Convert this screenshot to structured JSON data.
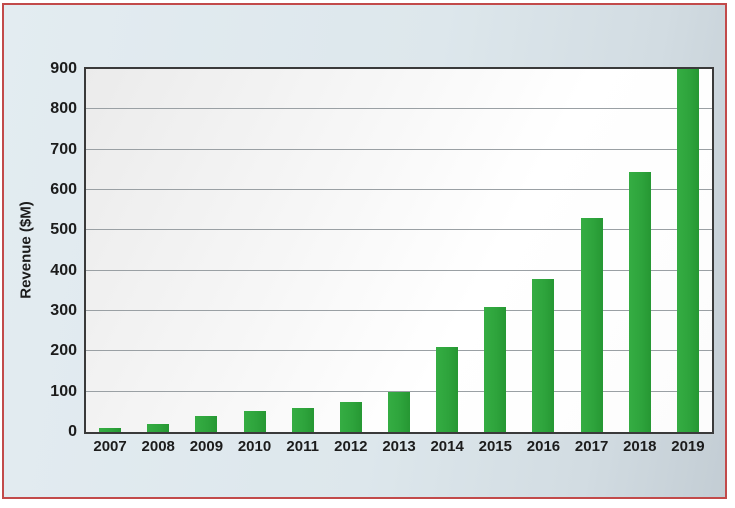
{
  "chart_data": {
    "type": "bar",
    "categories": [
      "2007",
      "2008",
      "2009",
      "2010",
      "2011",
      "2012",
      "2013",
      "2014",
      "2015",
      "2016",
      "2017",
      "2018",
      "2019"
    ],
    "values": [
      10,
      20,
      40,
      52,
      60,
      75,
      100,
      210,
      310,
      380,
      530,
      645,
      900
    ],
    "xlabel": "",
    "ylabel": "Revenue ($M)",
    "yticks": [
      0,
      100,
      200,
      300,
      400,
      500,
      600,
      700,
      800,
      900
    ],
    "ylim": [
      0,
      900
    ],
    "grid": "horizontal",
    "legend": "none"
  },
  "colors": {
    "bar": "#2ea43c",
    "frame_border": "#c24a4a",
    "panel_background": "#dde7ec",
    "plot_border": "#3a3a3a",
    "gridline": "#9aa0a4",
    "text": "#1c1c1c"
  }
}
